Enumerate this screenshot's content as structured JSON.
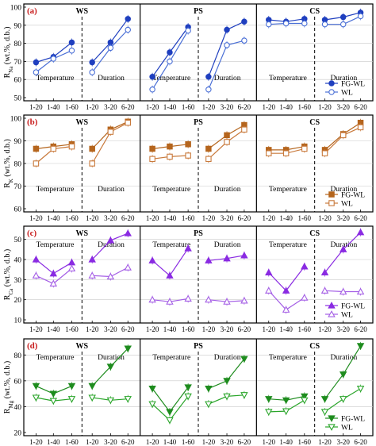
{
  "chart_data": [
    {
      "type": "line",
      "panel_label": "(a)",
      "ylabel": "R_Na (wt.%, d.b.)",
      "ylim": [
        50,
        100
      ],
      "yticks": [
        50,
        60,
        70,
        80,
        90,
        100
      ],
      "grid": true,
      "legend": {
        "position": "bottom-right",
        "entries": [
          "FG-WL",
          "WL"
        ]
      },
      "colors": {
        "FG-WL": "#1f3fbf",
        "WL": "#4a6fd6"
      },
      "markers": {
        "FG-WL": "circle-filled",
        "WL": "circle-open"
      },
      "section_labels": [
        "Temperature",
        "Duration"
      ],
      "subplots": [
        {
          "title": "WS",
          "temperature": {
            "x": [
              "1-20",
              "1-40",
              "1-60"
            ],
            "series": [
              {
                "name": "FG-WL",
                "values": [
                  69.5,
                  72.5,
                  80.5
                ]
              },
              {
                "name": "WL",
                "values": [
                  64,
                  71.5,
                  76
                ]
              }
            ]
          },
          "duration": {
            "x": [
              "1-20",
              "3-20",
              "6-20"
            ],
            "series": [
              {
                "name": "FG-WL",
                "values": [
                  69.5,
                  80.5,
                  93.5
                ]
              },
              {
                "name": "WL",
                "values": [
                  64,
                  77.5,
                  87.5
                ]
              }
            ]
          }
        },
        {
          "title": "PS",
          "temperature": {
            "x": [
              "1-20",
              "1-40",
              "1-60"
            ],
            "series": [
              {
                "name": "FG-WL",
                "values": [
                  61.5,
                  75,
                  89
                ]
              },
              {
                "name": "WL",
                "values": [
                  54.5,
                  70,
                  87
                ]
              }
            ]
          },
          "duration": {
            "x": [
              "1-20",
              "3-20",
              "6-20"
            ],
            "series": [
              {
                "name": "FG-WL",
                "values": [
                  61.5,
                  87.5,
                  92
                ]
              },
              {
                "name": "WL",
                "values": [
                  54.5,
                  79,
                  81.5
                ]
              }
            ]
          }
        },
        {
          "title": "CS",
          "temperature": {
            "x": [
              "1-20",
              "1-40",
              "1-60"
            ],
            "series": [
              {
                "name": "FG-WL",
                "values": [
                  93,
                  92,
                  93.5
                ]
              },
              {
                "name": "WL",
                "values": [
                  90.5,
                  91,
                  91
                ]
              }
            ]
          },
          "duration": {
            "x": [
              "1-20",
              "3-20",
              "6-20"
            ],
            "series": [
              {
                "name": "FG-WL",
                "values": [
                  93,
                  94.5,
                  97
                ]
              },
              {
                "name": "WL",
                "values": [
                  90.5,
                  90.5,
                  95
                ]
              }
            ]
          }
        }
      ]
    },
    {
      "type": "line",
      "panel_label": "(b)",
      "ylabel": "R_K (wt.%, d.b.)",
      "ylim": [
        60,
        100
      ],
      "yticks": [
        60,
        70,
        80,
        90,
        100
      ],
      "grid": true,
      "legend": {
        "position": "bottom-right",
        "entries": [
          "FG-WL",
          "WL"
        ]
      },
      "colors": {
        "FG-WL": "#b5651d",
        "WL": "#c97a3c"
      },
      "markers": {
        "FG-WL": "square-filled",
        "WL": "square-open"
      },
      "section_labels": [
        "Temperature",
        "Duration"
      ],
      "subplots": [
        {
          "title": "WS",
          "temperature": {
            "x": [
              "1-20",
              "1-40",
              "1-60"
            ],
            "series": [
              {
                "name": "FG-WL",
                "values": [
                  86.5,
                  87.5,
                  88.5
                ]
              },
              {
                "name": "WL",
                "values": [
                  80,
                  86.5,
                  87.5
                ]
              }
            ]
          },
          "duration": {
            "x": [
              "1-20",
              "3-20",
              "6-20"
            ],
            "series": [
              {
                "name": "FG-WL",
                "values": [
                  86.5,
                  95,
                  98.5
                ]
              },
              {
                "name": "WL",
                "values": [
                  80,
                  94,
                  98
                ]
              }
            ]
          }
        },
        {
          "title": "PS",
          "temperature": {
            "x": [
              "1-20",
              "1-40",
              "1-60"
            ],
            "series": [
              {
                "name": "FG-WL",
                "values": [
                  86.5,
                  87.5,
                  88.5
                ]
              },
              {
                "name": "WL",
                "values": [
                  82,
                  83,
                  83.5
                ]
              }
            ]
          },
          "duration": {
            "x": [
              "1-20",
              "3-20",
              "6-20"
            ],
            "series": [
              {
                "name": "FG-WL",
                "values": [
                  86.5,
                  92.5,
                  97
                ]
              },
              {
                "name": "WL",
                "values": [
                  82,
                  89.5,
                  95
                ]
              }
            ]
          }
        },
        {
          "title": "CS",
          "temperature": {
            "x": [
              "1-20",
              "1-40",
              "1-60"
            ],
            "series": [
              {
                "name": "FG-WL",
                "values": [
                  86,
                  86,
                  87.5
                ]
              },
              {
                "name": "WL",
                "values": [
                  84.5,
                  84.5,
                  86.5
                ]
              }
            ]
          },
          "duration": {
            "x": [
              "1-20",
              "3-20",
              "6-20"
            ],
            "series": [
              {
                "name": "FG-WL",
                "values": [
                  86,
                  93,
                  98
                ]
              },
              {
                "name": "WL",
                "values": [
                  84.5,
                  92.5,
                  96
                ]
              }
            ]
          }
        }
      ]
    },
    {
      "type": "line",
      "panel_label": "(c)",
      "ylabel": "R_Ca (wt.%, d.b.)",
      "ylim": [
        10,
        55
      ],
      "yticks": [
        10,
        20,
        30,
        40,
        50
      ],
      "grid": true,
      "legend": {
        "position": "bottom-right",
        "entries": [
          "FG-WL",
          "WL"
        ]
      },
      "colors": {
        "FG-WL": "#8a2be2",
        "WL": "#a45ee5"
      },
      "markers": {
        "FG-WL": "triangle-up-filled",
        "WL": "triangle-up-open"
      },
      "section_labels": [
        "Temperature",
        "Duration"
      ],
      "subplots": [
        {
          "title": "WS",
          "temperature": {
            "x": [
              "1-20",
              "1-40",
              "1-60"
            ],
            "series": [
              {
                "name": "FG-WL",
                "values": [
                  40,
                  33,
                  38.5
                ]
              },
              {
                "name": "WL",
                "values": [
                  32,
                  28,
                  35.5
                ]
              }
            ]
          },
          "duration": {
            "x": [
              "1-20",
              "3-20",
              "6-20"
            ],
            "series": [
              {
                "name": "FG-WL",
                "values": [
                  40,
                  49.5,
                  53
                ]
              },
              {
                "name": "WL",
                "values": [
                  32,
                  31.5,
                  36
                ]
              }
            ]
          }
        },
        {
          "title": "PS",
          "temperature": {
            "x": [
              "1-20",
              "1-40",
              "1-60"
            ],
            "series": [
              {
                "name": "FG-WL",
                "values": [
                  39.5,
                  32,
                  45.5
                ]
              },
              {
                "name": "WL",
                "values": [
                  20,
                  19,
                  20.5
                ]
              }
            ]
          },
          "duration": {
            "x": [
              "1-20",
              "3-20",
              "6-20"
            ],
            "series": [
              {
                "name": "FG-WL",
                "values": [
                  39.5,
                  40.5,
                  42
                ]
              },
              {
                "name": "WL",
                "values": [
                  20,
                  19,
                  19.5
                ]
              }
            ]
          }
        },
        {
          "title": "CS",
          "temperature": {
            "x": [
              "1-20",
              "1-40",
              "1-60"
            ],
            "series": [
              {
                "name": "FG-WL",
                "values": [
                  33.5,
                  24.5,
                  36.5
                ]
              },
              {
                "name": "WL",
                "values": [
                  24.5,
                  15,
                  21
                ]
              }
            ]
          },
          "duration": {
            "x": [
              "1-20",
              "3-20",
              "6-20"
            ],
            "series": [
              {
                "name": "FG-WL",
                "values": [
                  33.5,
                  45,
                  53.5
                ]
              },
              {
                "name": "WL",
                "values": [
                  24.5,
                  24,
                  24
                ]
              }
            ]
          }
        }
      ]
    },
    {
      "type": "line",
      "panel_label": "(d)",
      "ylabel": "R_Mg (wt.%, d.b.)",
      "ylim": [
        20,
        90
      ],
      "yticks": [
        20,
        40,
        60,
        80
      ],
      "grid": true,
      "legend": {
        "position": "bottom-right",
        "entries": [
          "FG-WL",
          "WL"
        ]
      },
      "colors": {
        "FG-WL": "#1e8c1e",
        "WL": "#2aa52a"
      },
      "markers": {
        "FG-WL": "triangle-down-filled",
        "WL": "triangle-down-open"
      },
      "section_labels": [
        "Temperature",
        "Duration"
      ],
      "subplots": [
        {
          "title": "WS",
          "temperature": {
            "x": [
              "1-20",
              "1-40",
              "1-60"
            ],
            "series": [
              {
                "name": "FG-WL",
                "values": [
                  56,
                  50,
                  56
                ]
              },
              {
                "name": "WL",
                "values": [
                  47,
                  44.5,
                  46
                ]
              }
            ]
          },
          "duration": {
            "x": [
              "1-20",
              "3-20",
              "6-20"
            ],
            "series": [
              {
                "name": "FG-WL",
                "values": [
                  56,
                  71,
                  85
                ]
              },
              {
                "name": "WL",
                "values": [
                  47,
                  45,
                  46
                ]
              }
            ]
          }
        },
        {
          "title": "PS",
          "temperature": {
            "x": [
              "1-20",
              "1-40",
              "1-60"
            ],
            "series": [
              {
                "name": "FG-WL",
                "values": [
                  54,
                  36,
                  55
                ]
              },
              {
                "name": "WL",
                "values": [
                  42,
                  29.5,
                  48
                ]
              }
            ]
          },
          "duration": {
            "x": [
              "1-20",
              "3-20",
              "6-20"
            ],
            "series": [
              {
                "name": "FG-WL",
                "values": [
                  54,
                  60,
                  77
                ]
              },
              {
                "name": "WL",
                "values": [
                  42,
                  48,
                  49
                ]
              }
            ]
          }
        },
        {
          "title": "CS",
          "temperature": {
            "x": [
              "1-20",
              "1-40",
              "1-60"
            ],
            "series": [
              {
                "name": "FG-WL",
                "values": [
                  46,
                  45,
                  48
                ]
              },
              {
                "name": "WL",
                "values": [
                  36,
                  36.5,
                  45
                ]
              }
            ]
          },
          "duration": {
            "x": [
              "1-20",
              "3-20",
              "6-20"
            ],
            "series": [
              {
                "name": "FG-WL",
                "values": [
                  46,
                  65,
                  87
                ]
              },
              {
                "name": "WL",
                "values": [
                  36,
                  46,
                  54
                ]
              }
            ]
          }
        }
      ]
    }
  ]
}
